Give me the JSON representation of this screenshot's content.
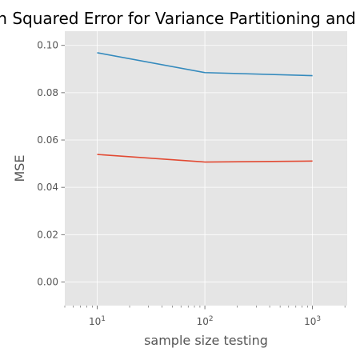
{
  "chart_data": {
    "type": "line",
    "title": "Mean Squared Error for Variance Partitioning and Regression",
    "xlabel": "sample size testing",
    "ylabel": "MSE",
    "xscale": "log",
    "xlim": [
      5,
      2100
    ],
    "ylim": [
      -0.01,
      0.106
    ],
    "xticks": [
      {
        "value": 10,
        "base": "10",
        "exp": "1"
      },
      {
        "value": 100,
        "base": "10",
        "exp": "2"
      },
      {
        "value": 1000,
        "base": "10",
        "exp": "3"
      }
    ],
    "yticks": [
      {
        "value": 0.0,
        "label": "0.00"
      },
      {
        "value": 0.02,
        "label": "0.02"
      },
      {
        "value": 0.04,
        "label": "0.04"
      },
      {
        "value": 0.06,
        "label": "0.06"
      },
      {
        "value": 0.08,
        "label": "0.08"
      },
      {
        "value": 0.1,
        "label": "0.10"
      }
    ],
    "grid": true,
    "x": [
      10,
      100,
      1000
    ],
    "series": [
      {
        "values": [
          0.0539,
          0.0507,
          0.0511
        ],
        "color": "#E24A33"
      },
      {
        "values": [
          0.0969,
          0.0885,
          0.0872
        ],
        "color": "#348ABD"
      }
    ],
    "colors": {
      "background": "#E5E5E5",
      "grid": "#FFFFFF",
      "tick": "#555555"
    }
  }
}
